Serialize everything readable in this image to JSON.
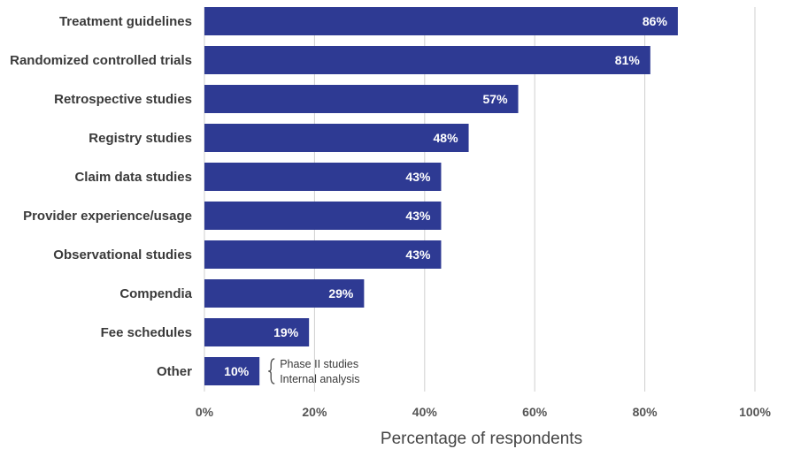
{
  "chart_data": {
    "type": "bar",
    "orientation": "horizontal",
    "categories": [
      "Treatment guidelines",
      "Randomized controlled trials",
      "Retrospective studies",
      "Registry studies",
      "Claim data studies",
      "Provider experience/usage",
      "Observational studies",
      "Compendia",
      "Fee schedules",
      "Other"
    ],
    "values": [
      86,
      81,
      57,
      48,
      43,
      43,
      43,
      29,
      19,
      10
    ],
    "data_labels": [
      "86%",
      "81%",
      "57%",
      "48%",
      "43%",
      "43%",
      "43%",
      "29%",
      "19%",
      "10%"
    ],
    "xlabel": "Percentage of respondents",
    "xlim": [
      0,
      100
    ],
    "xticks": [
      "0%",
      "20%",
      "40%",
      "60%",
      "80%",
      "100%"
    ],
    "bar_color": "#2e3a93",
    "grid": true,
    "annotation": {
      "category": "Other",
      "items": [
        "Phase II studies",
        "Internal analysis"
      ]
    }
  }
}
